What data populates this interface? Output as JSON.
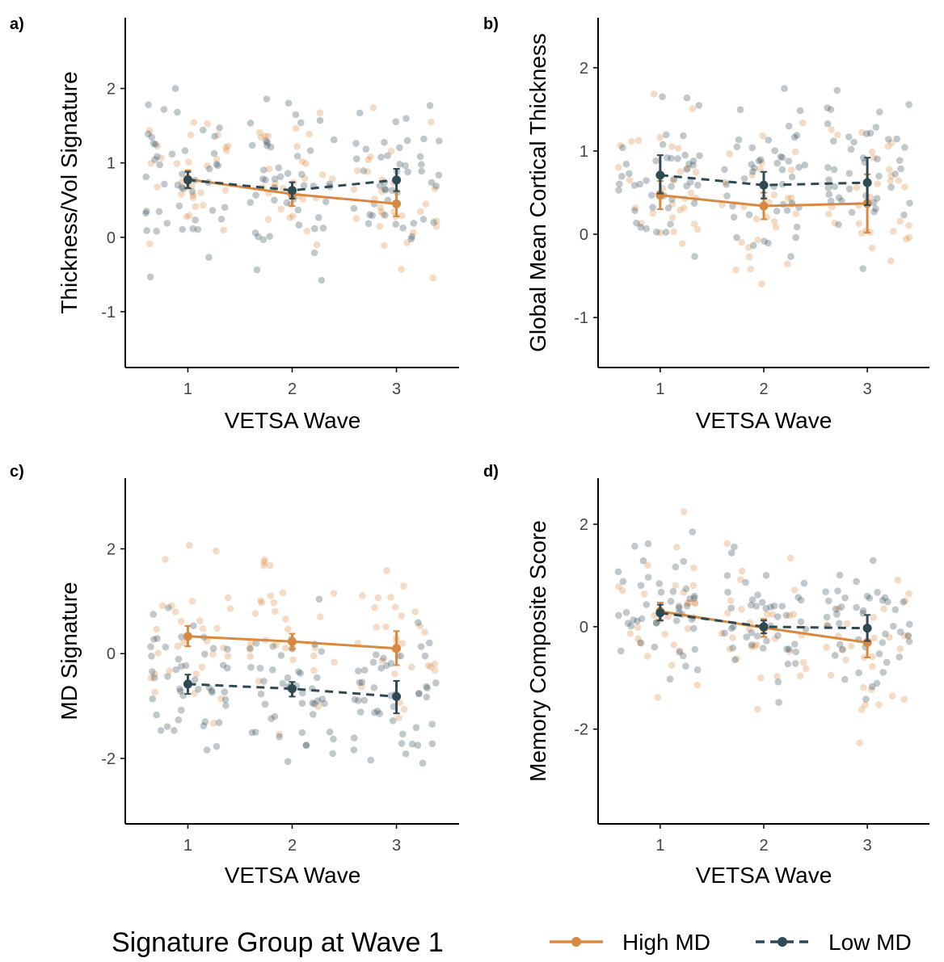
{
  "colors": {
    "high": "#D9893F",
    "low": "#2F4A52",
    "axis": "#000000",
    "tick_text": "#444444"
  },
  "legend": {
    "title": "Signature Group at Wave 1",
    "items": [
      {
        "label": "High MD",
        "color": "#D9893F",
        "line_style": "solid"
      },
      {
        "label": "Low MD",
        "color": "#2F4A52",
        "line_style": "dashed"
      }
    ],
    "placement": "bottom"
  },
  "chart_data": [
    {
      "panel": "a)",
      "type": "line",
      "xlabel": "VETSA Wave",
      "ylabel": "Thickness/Vol Signature",
      "x": [
        1,
        2,
        3
      ],
      "xlim": [
        0.4,
        3.6
      ],
      "ylim": [
        -1.75,
        2.95
      ],
      "yticks": [
        -1,
        0,
        1,
        2
      ],
      "grid": false,
      "series": [
        {
          "name": "High MD",
          "values": [
            0.78,
            0.58,
            0.45
          ],
          "lower": [
            0.66,
            0.42,
            0.28
          ],
          "upper": [
            0.9,
            0.74,
            0.62
          ]
        },
        {
          "name": "Low MD",
          "values": [
            0.77,
            0.63,
            0.77
          ],
          "lower": [
            0.66,
            0.52,
            0.62
          ],
          "upper": [
            0.88,
            0.74,
            0.92
          ]
        }
      ]
    },
    {
      "panel": "b)",
      "type": "line",
      "xlabel": "VETSA Wave",
      "ylabel": "Global Mean Cortical Thickness",
      "x": [
        1,
        2,
        3
      ],
      "xlim": [
        0.4,
        3.6
      ],
      "ylim": [
        -1.6,
        2.6
      ],
      "yticks": [
        -1,
        0,
        1,
        2
      ],
      "grid": false,
      "series": [
        {
          "name": "High MD",
          "values": [
            0.47,
            0.34,
            0.37
          ],
          "lower": [
            0.3,
            0.18,
            0.02
          ],
          "upper": [
            0.64,
            0.5,
            0.72
          ]
        },
        {
          "name": "Low MD",
          "values": [
            0.71,
            0.59,
            0.62
          ],
          "lower": [
            0.49,
            0.43,
            0.35
          ],
          "upper": [
            0.95,
            0.75,
            0.92
          ]
        }
      ]
    },
    {
      "panel": "c)",
      "type": "line",
      "xlabel": "VETSA Wave",
      "ylabel": "MD Signature",
      "x": [
        1,
        2,
        3
      ],
      "xlim": [
        0.4,
        3.6
      ],
      "ylim": [
        -3.25,
        3.35
      ],
      "yticks": [
        -2,
        0,
        2
      ],
      "grid": false,
      "series": [
        {
          "name": "High MD",
          "values": [
            0.33,
            0.23,
            0.1
          ],
          "lower": [
            0.14,
            0.08,
            -0.22
          ],
          "upper": [
            0.53,
            0.38,
            0.43
          ]
        },
        {
          "name": "Low MD",
          "values": [
            -0.58,
            -0.67,
            -0.82
          ],
          "lower": [
            -0.77,
            -0.82,
            -1.14
          ],
          "upper": [
            -0.4,
            -0.54,
            -0.52
          ]
        }
      ]
    },
    {
      "panel": "d)",
      "type": "line",
      "xlabel": "VETSA Wave",
      "ylabel": "Memory Composite Score",
      "x": [
        1,
        2,
        3
      ],
      "xlim": [
        0.4,
        3.6
      ],
      "ylim": [
        -3.85,
        2.9
      ],
      "yticks": [
        -2,
        0,
        2
      ],
      "grid": false,
      "series": [
        {
          "name": "High MD",
          "values": [
            0.3,
            -0.02,
            -0.31
          ],
          "lower": [
            0.13,
            -0.2,
            -0.6
          ],
          "upper": [
            0.47,
            0.15,
            -0.05
          ]
        },
        {
          "name": "Low MD",
          "values": [
            0.27,
            0.0,
            -0.03
          ],
          "lower": [
            0.12,
            -0.13,
            -0.28
          ],
          "upper": [
            0.43,
            0.12,
            0.23
          ]
        }
      ]
    }
  ]
}
